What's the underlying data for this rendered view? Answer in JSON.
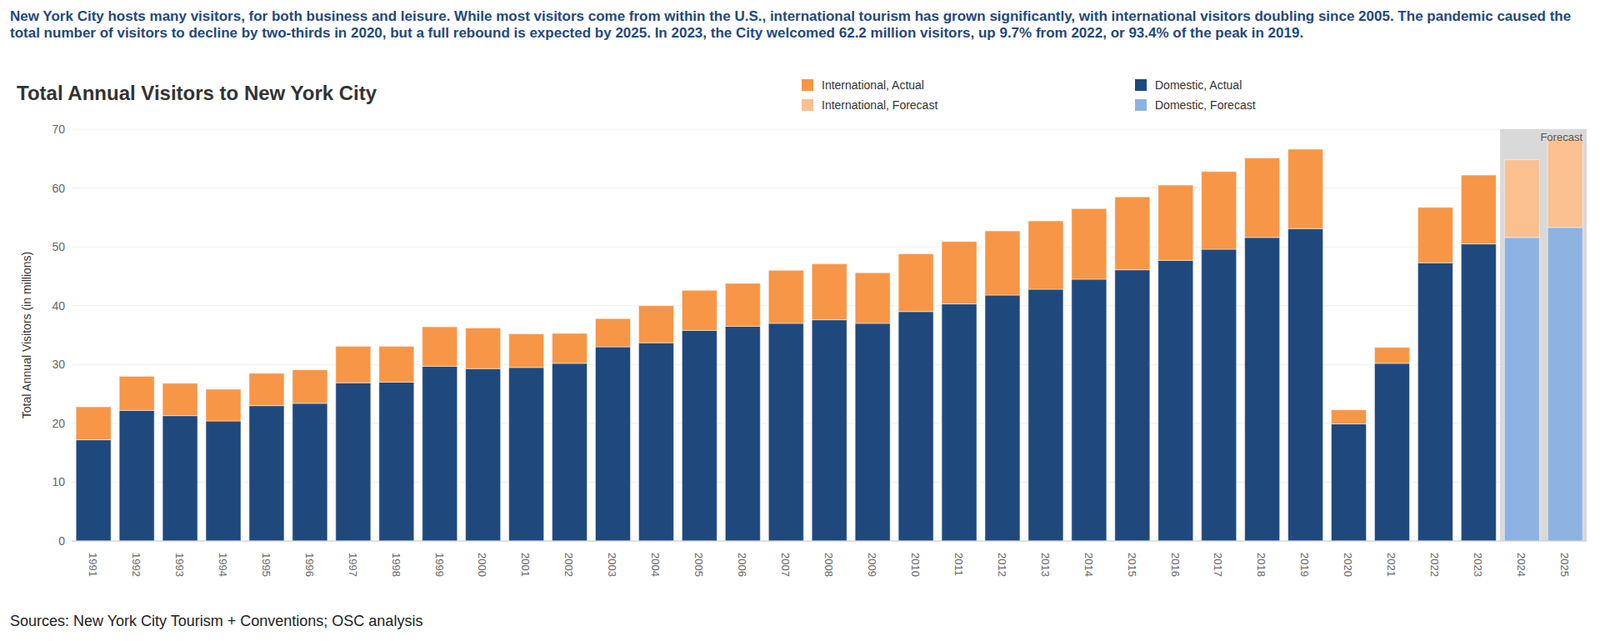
{
  "chart_data": {
    "type": "bar",
    "subtitle": "New York City hosts many visitors, for both business and leisure. While most visitors come from within the U.S., international tourism has grown significantly, with international visitors doubling since 2005. The pandemic caused the total number of visitors to decline by two-thirds in 2020, but a full rebound is expected by 2025. In 2023, the City welcomed 62.2 million visitors, up 9.7% from 2022, or 93.4% of the peak in 2019.",
    "title": "Total Annual Visitors to New York City",
    "source": "Sources: New York City Tourism + Conventions; OSC analysis",
    "y_label": "Total Annual Visitors (in millions)",
    "categories": [
      1991,
      1992,
      1993,
      1994,
      1995,
      1996,
      1997,
      1998,
      1999,
      2000,
      2001,
      2002,
      2003,
      2004,
      2005,
      2006,
      2007,
      2008,
      2009,
      2010,
      2011,
      2012,
      2013,
      2014,
      2015,
      2016,
      2017,
      2018,
      2019,
      2020,
      2021,
      2022,
      2023,
      2024,
      2025
    ],
    "series": [
      {
        "name": "International, Actual",
        "color": "#f79646",
        "values": [
          5.6,
          5.8,
          5.5,
          5.4,
          5.5,
          5.7,
          6.2,
          6.1,
          6.7,
          6.9,
          5.7,
          5.1,
          4.8,
          6.3,
          6.8,
          7.3,
          9.0,
          9.5,
          8.6,
          9.8,
          10.6,
          10.9,
          11.6,
          12.0,
          12.4,
          12.8,
          13.2,
          13.5,
          13.5,
          2.4,
          2.7,
          9.4,
          11.7,
          null,
          null
        ]
      },
      {
        "name": "International, Forecast",
        "color": "#fac090",
        "values": [
          null,
          null,
          null,
          null,
          null,
          null,
          null,
          null,
          null,
          null,
          null,
          null,
          null,
          null,
          null,
          null,
          null,
          null,
          null,
          null,
          null,
          null,
          null,
          null,
          null,
          null,
          null,
          null,
          null,
          null,
          null,
          null,
          null,
          13.2,
          15.1
        ]
      },
      {
        "name": "Domestic, Actual",
        "color": "#1f497d",
        "values": [
          17.2,
          22.2,
          21.3,
          20.4,
          23.0,
          23.4,
          26.9,
          27.0,
          29.7,
          29.3,
          29.5,
          30.2,
          33.0,
          33.7,
          35.8,
          36.5,
          37.0,
          37.6,
          37.0,
          39.0,
          40.3,
          41.8,
          42.8,
          44.5,
          46.1,
          47.7,
          49.6,
          51.6,
          53.1,
          19.9,
          30.2,
          47.3,
          50.5,
          null,
          null
        ]
      },
      {
        "name": "Domestic, Forecast",
        "color": "#8db3e2",
        "values": [
          null,
          null,
          null,
          null,
          null,
          null,
          null,
          null,
          null,
          null,
          null,
          null,
          null,
          null,
          null,
          null,
          null,
          null,
          null,
          null,
          null,
          null,
          null,
          null,
          null,
          null,
          null,
          null,
          null,
          null,
          null,
          null,
          null,
          51.6,
          53.3
        ]
      }
    ],
    "ylim": [
      0,
      70
    ],
    "yticks": [
      0,
      10,
      20,
      30,
      40,
      50,
      60,
      70
    ],
    "grid": true,
    "stacked": true,
    "legend": "top-right",
    "annotations": [
      {
        "text": "Forecast",
        "x1": 2024,
        "x2": 2025
      }
    ]
  }
}
